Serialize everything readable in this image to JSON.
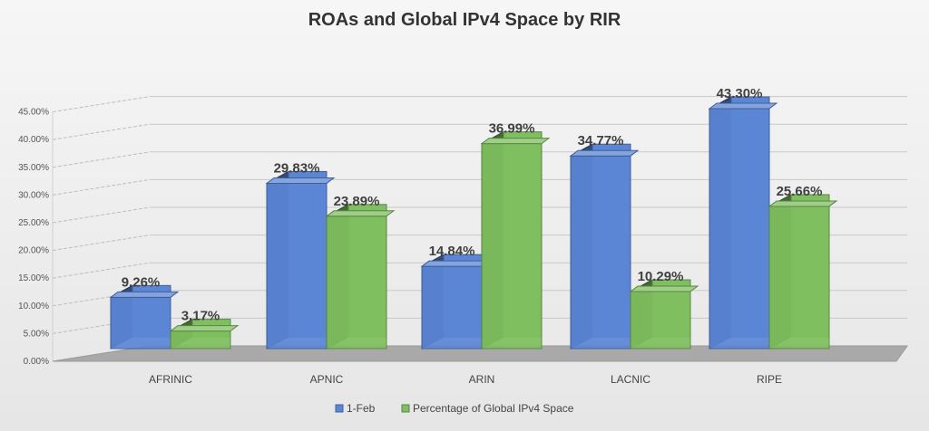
{
  "chart_data": {
    "type": "bar",
    "title": "ROAs and Global IPv4 Space by RIR",
    "categories": [
      "AFRINIC",
      "APNIC",
      "ARIN",
      "LACNIC",
      "RIPE"
    ],
    "series": [
      {
        "name": "1-Feb",
        "color": "#5b86d6",
        "values": [
          9.26,
          29.83,
          14.84,
          34.77,
          43.3
        ],
        "labels": [
          "9.26%",
          "29.83%",
          "14.84%",
          "34.77%",
          "43.30%"
        ]
      },
      {
        "name": "Percentage of Global IPv4 Space",
        "color": "#7fbf5f",
        "values": [
          3.17,
          23.89,
          36.99,
          10.29,
          25.66
        ],
        "labels": [
          "3.17%",
          "23.89%",
          "36.99%",
          "10.29%",
          "25.66%"
        ]
      }
    ],
    "yticks": [
      "0.00%",
      "5.00%",
      "10.00%",
      "15.00%",
      "20.00%",
      "25.00%",
      "30.00%",
      "35.00%",
      "40.00%",
      "45.00%"
    ],
    "ylim": [
      0,
      45
    ],
    "grid": true,
    "legend_position": "bottom"
  }
}
